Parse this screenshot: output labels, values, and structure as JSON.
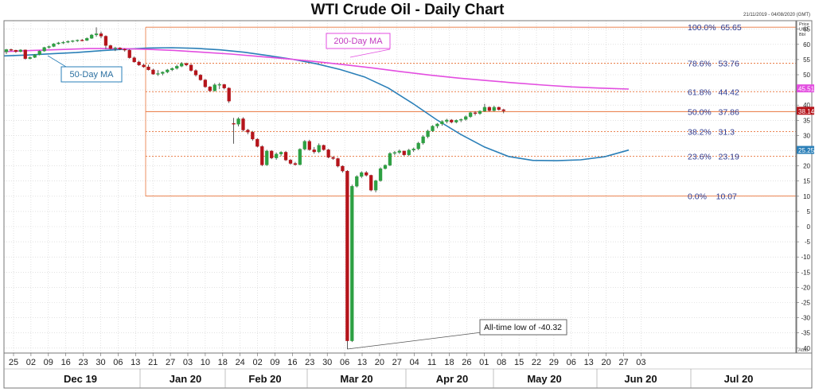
{
  "chart_data": {
    "type": "candlestick",
    "title": "WTI Crude Oil - Daily Chart",
    "date_range": "21/11/2019 - 04/08/2020 (GMT)",
    "y_axis_header": [
      "Price",
      "USD",
      "Bbl"
    ],
    "ylim": [
      -42,
      68
    ],
    "yticks": [
      65,
      60,
      55,
      50,
      45,
      40,
      35,
      30,
      25,
      20,
      15,
      10,
      5,
      0,
      -5,
      -10,
      -15,
      -20,
      -25,
      -30,
      -35,
      -40
    ],
    "x_tick_labels": [
      "25",
      "02",
      "09",
      "16",
      "23",
      "30",
      "06",
      "13",
      "21",
      "27",
      "03",
      "10",
      "18",
      "24",
      "02",
      "09",
      "16",
      "23",
      "30",
      "06",
      "13",
      "20",
      "27",
      "04",
      "11",
      "18",
      "26",
      "01",
      "08",
      "15",
      "22",
      "29",
      "06",
      "13",
      "20",
      "27",
      "03"
    ],
    "month_labels": [
      "Dec 19",
      "Jan 20",
      "Feb 20",
      "Mar 20",
      "Apr 20",
      "May 20",
      "Jun 20",
      "Jul 20"
    ],
    "candles": [
      [
        57.5,
        58.5,
        56.8,
        58.3
      ],
      [
        58.3,
        58.6,
        57.8,
        58.1
      ],
      [
        58.1,
        58.2,
        57.2,
        57.6
      ],
      [
        57.6,
        58.4,
        57.4,
        58.2
      ],
      [
        58.2,
        58.3,
        55.0,
        55.3
      ],
      [
        55.3,
        56.0,
        55.1,
        55.7
      ],
      [
        55.7,
        56.8,
        55.5,
        56.6
      ],
      [
        56.6,
        58.0,
        56.4,
        57.8
      ],
      [
        57.8,
        59.2,
        57.6,
        59.0
      ],
      [
        59.0,
        59.6,
        58.6,
        59.3
      ],
      [
        59.3,
        60.4,
        59.1,
        60.2
      ],
      [
        60.2,
        60.8,
        59.9,
        60.5
      ],
      [
        60.5,
        61.1,
        60.1,
        60.7
      ],
      [
        60.7,
        61.3,
        60.4,
        61.0
      ],
      [
        61.0,
        61.4,
        60.6,
        61.2
      ],
      [
        61.2,
        61.6,
        60.8,
        61.4
      ],
      [
        61.4,
        61.8,
        61.0,
        61.3
      ],
      [
        61.3,
        62.3,
        61.1,
        62.0
      ],
      [
        62.0,
        63.4,
        61.8,
        63.1
      ],
      [
        63.1,
        65.6,
        62.5,
        63.5
      ],
      [
        63.5,
        64.2,
        62.0,
        62.7
      ],
      [
        62.7,
        63.0,
        58.5,
        59.6
      ],
      [
        59.6,
        59.9,
        58.3,
        58.6
      ],
      [
        58.6,
        59.2,
        57.8,
        58.8
      ],
      [
        58.8,
        59.1,
        58.1,
        58.4
      ],
      [
        58.4,
        58.7,
        57.6,
        58.1
      ],
      [
        58.1,
        58.4,
        55.3,
        55.6
      ],
      [
        55.6,
        56.0,
        54.0,
        54.2
      ],
      [
        54.2,
        54.6,
        52.9,
        53.2
      ],
      [
        53.2,
        53.7,
        52.3,
        52.6
      ],
      [
        52.6,
        53.3,
        51.4,
        51.6
      ],
      [
        51.6,
        52.0,
        50.0,
        50.2
      ],
      [
        50.2,
        51.5,
        49.6,
        50.4
      ],
      [
        50.4,
        51.1,
        49.8,
        50.9
      ],
      [
        50.9,
        51.9,
        50.5,
        51.6
      ],
      [
        51.6,
        52.4,
        51.2,
        52.1
      ],
      [
        52.1,
        53.3,
        51.7,
        52.8
      ],
      [
        52.8,
        54.2,
        52.5,
        53.7
      ],
      [
        53.7,
        54.0,
        52.8,
        53.2
      ],
      [
        53.2,
        53.5,
        51.0,
        51.4
      ],
      [
        51.4,
        51.8,
        49.4,
        49.9
      ],
      [
        49.9,
        50.2,
        48.0,
        48.3
      ],
      [
        48.3,
        48.6,
        45.7,
        46.0
      ],
      [
        46.0,
        46.3,
        44.4,
        44.7
      ],
      [
        44.7,
        47.2,
        44.5,
        46.7
      ],
      [
        46.7,
        47.4,
        45.3,
        46.8
      ],
      [
        46.8,
        47.0,
        45.2,
        45.6
      ],
      [
        45.6,
        45.9,
        40.7,
        41.3
      ],
      [
        34.0,
        35.8,
        27.3,
        33.7
      ],
      [
        33.7,
        36.0,
        33.0,
        35.5
      ],
      [
        35.5,
        36.0,
        31.3,
        31.8
      ],
      [
        31.8,
        32.2,
        30.4,
        31.1
      ],
      [
        31.1,
        31.5,
        28.3,
        28.8
      ],
      [
        28.8,
        29.1,
        26.1,
        26.4
      ],
      [
        26.4,
        26.8,
        19.9,
        20.3
      ],
      [
        20.3,
        25.3,
        20.0,
        24.9
      ],
      [
        24.9,
        25.2,
        22.2,
        22.6
      ],
      [
        22.6,
        24.4,
        22.0,
        23.9
      ],
      [
        23.9,
        24.8,
        23.2,
        24.5
      ],
      [
        24.5,
        24.9,
        21.6,
        21.9
      ],
      [
        21.9,
        22.3,
        20.4,
        20.8
      ],
      [
        20.8,
        21.3,
        20.1,
        20.4
      ],
      [
        20.4,
        25.8,
        20.2,
        25.5
      ],
      [
        25.5,
        28.5,
        25.1,
        28.1
      ],
      [
        28.1,
        28.6,
        25.0,
        25.3
      ],
      [
        25.3,
        26.2,
        24.0,
        24.6
      ],
      [
        24.6,
        27.4,
        24.2,
        26.8
      ],
      [
        26.8,
        27.0,
        25.0,
        25.3
      ],
      [
        25.3,
        25.6,
        22.5,
        22.8
      ],
      [
        22.8,
        23.2,
        22.0,
        22.4
      ],
      [
        22.4,
        22.7,
        19.5,
        19.9
      ],
      [
        19.9,
        20.2,
        17.8,
        18.3
      ],
      [
        18.3,
        18.6,
        -40.3,
        -37.6
      ],
      [
        -37.6,
        13.8,
        -38.0,
        13.3
      ],
      [
        13.3,
        16.9,
        12.9,
        16.5
      ],
      [
        16.5,
        18.2,
        16.0,
        17.8
      ],
      [
        17.8,
        18.3,
        16.5,
        16.9
      ],
      [
        16.9,
        17.1,
        11.6,
        12.0
      ],
      [
        12.0,
        15.4,
        11.3,
        15.1
      ],
      [
        15.1,
        19.5,
        14.8,
        19.1
      ],
      [
        19.1,
        20.5,
        18.8,
        20.2
      ],
      [
        20.2,
        24.5,
        19.9,
        24.1
      ],
      [
        24.1,
        24.9,
        23.5,
        24.4
      ],
      [
        24.4,
        25.4,
        23.9,
        24.9
      ],
      [
        24.9,
        25.0,
        23.3,
        23.6
      ],
      [
        23.6,
        25.6,
        23.2,
        25.2
      ],
      [
        25.2,
        26.0,
        24.6,
        25.6
      ],
      [
        25.6,
        27.9,
        25.2,
        27.5
      ],
      [
        27.5,
        30.1,
        27.0,
        29.6
      ],
      [
        29.6,
        31.9,
        29.1,
        31.5
      ],
      [
        31.5,
        33.4,
        31.2,
        33.1
      ],
      [
        33.1,
        34.1,
        32.4,
        33.8
      ],
      [
        33.8,
        35.0,
        33.2,
        34.6
      ],
      [
        34.6,
        35.5,
        34.0,
        35.1
      ],
      [
        35.1,
        35.4,
        34.0,
        34.4
      ],
      [
        34.4,
        35.3,
        34.0,
        35.0
      ],
      [
        35.0,
        35.6,
        34.4,
        35.3
      ],
      [
        35.3,
        36.6,
        34.9,
        36.2
      ],
      [
        36.2,
        37.8,
        35.8,
        37.5
      ],
      [
        37.5,
        38.0,
        36.6,
        37.2
      ],
      [
        37.2,
        38.3,
        36.8,
        38.0
      ],
      [
        38.0,
        40.4,
        37.8,
        39.3
      ],
      [
        39.3,
        39.6,
        37.9,
        38.2
      ],
      [
        38.2,
        39.8,
        37.9,
        39.3
      ],
      [
        39.3,
        39.5,
        38.2,
        38.5
      ],
      [
        38.5,
        38.8,
        37.3,
        38.1
      ]
    ],
    "ma50_values": [
      56.2,
      56.5,
      56.9,
      57.3,
      57.9,
      58.4,
      58.8,
      58.9,
      58.7,
      58.2,
      57.4,
      56.3,
      55.1,
      53.6,
      51.7,
      49.3,
      45.6,
      40.6,
      35.2,
      30.4,
      26.2,
      23.1,
      21.8,
      21.7,
      22.0,
      23.0,
      25.2
    ],
    "ma200_values": [
      57.6,
      58.0,
      58.3,
      58.6,
      58.6,
      58.4,
      58.0,
      57.4,
      56.8,
      56.0,
      55.2,
      54.3,
      53.3,
      52.2,
      51.0,
      49.9,
      48.9,
      48.1,
      47.3,
      46.6,
      46.0,
      45.6,
      45.3
    ],
    "moving_averages": [
      {
        "name": "50-Day MA",
        "color": "#2a7fb8",
        "last": 25.25
      },
      {
        "name": "200-Day MA",
        "color": "#e34ee0",
        "last": 45.51
      }
    ],
    "last_price": 38.14,
    "fibonacci": [
      {
        "ratio": "100.0%",
        "level": 65.65,
        "label": "100.0%  65.65"
      },
      {
        "ratio": "78.6%",
        "level": 53.76,
        "label": "78.6%   53.76"
      },
      {
        "ratio": "61.8%",
        "level": 44.42,
        "label": "61.8%   44.42"
      },
      {
        "ratio": "50.0%",
        "level": 37.86,
        "label": "50.0%   37.86"
      },
      {
        "ratio": "38.2%",
        "level": 31.3,
        "label": "38.2%   31.3"
      },
      {
        "ratio": "23.6%",
        "level": 23.19,
        "label": "23.6%   23.19"
      },
      {
        "ratio": "0.0%",
        "level": 10.07,
        "label": "0.0%    10.07"
      }
    ],
    "annotations": {
      "all_time_low": {
        "text": "All-time low of -40.32",
        "value": -40.32
      }
    },
    "axis_note": "Auto",
    "colors": {
      "bull": "#2ea043",
      "bear": "#b5141b",
      "fib_line": "#e8743b",
      "fib_text": "#2e3a8f",
      "ma50": "#2a7fb8",
      "ma200": "#e34ee0",
      "price_tag": "#b5141b"
    }
  }
}
